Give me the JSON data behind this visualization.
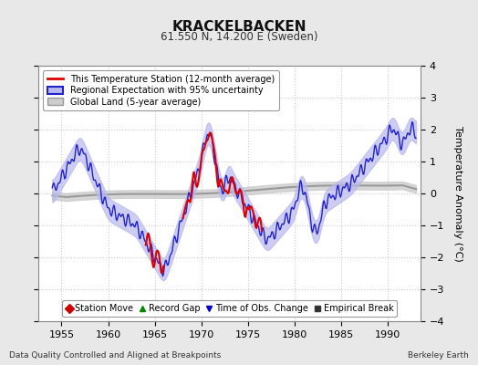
{
  "title": "KRACKELBACKEN",
  "subtitle": "61.550 N, 14.200 E (Sweden)",
  "ylabel": "Temperature Anomaly (°C)",
  "xlabel_left": "Data Quality Controlled and Aligned at Breakpoints",
  "xlabel_right": "Berkeley Earth",
  "ylim": [
    -4,
    4
  ],
  "xlim": [
    1952.5,
    1993.5
  ],
  "xticks": [
    1955,
    1960,
    1965,
    1970,
    1975,
    1980,
    1985,
    1990
  ],
  "yticks": [
    -4,
    -3,
    -2,
    -1,
    0,
    1,
    2,
    3,
    4
  ],
  "grid_color": "#cccccc",
  "bg_color": "#e8e8e8",
  "plot_bg_color": "#ffffff",
  "red_color": "#dd0000",
  "blue_color": "#2222cc",
  "blue_fill_color": "#b8b8ee",
  "gray_color": "#999999",
  "gray_fill_color": "#cccccc",
  "legend2_items": [
    {
      "label": "Station Move",
      "marker": "D",
      "color": "#cc0000"
    },
    {
      "label": "Record Gap",
      "marker": "^",
      "color": "#008800"
    },
    {
      "label": "Time of Obs. Change",
      "marker": "v",
      "color": "#0000cc"
    },
    {
      "label": "Empirical Break",
      "marker": "s",
      "color": "#333333"
    }
  ]
}
